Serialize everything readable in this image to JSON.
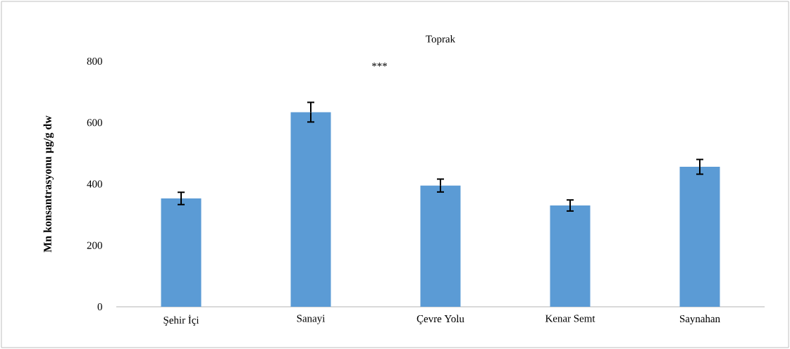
{
  "chart_data": {
    "type": "bar",
    "title": "Toprak",
    "ylabel": "Mn konsantrasyonu µg/g dw",
    "categories": [
      "Şehir İçi",
      "Sanayi",
      "Çevre Yolu",
      "Kenar Semt",
      "Saynahan"
    ],
    "values": [
      353,
      634,
      395,
      330,
      456
    ],
    "errors": [
      20,
      32,
      21,
      18,
      24
    ],
    "color": "#5b9bd5",
    "ylim": [
      0,
      800
    ],
    "yticks": [
      0,
      200,
      400,
      600,
      800
    ],
    "annotations": [
      "***"
    ]
  }
}
